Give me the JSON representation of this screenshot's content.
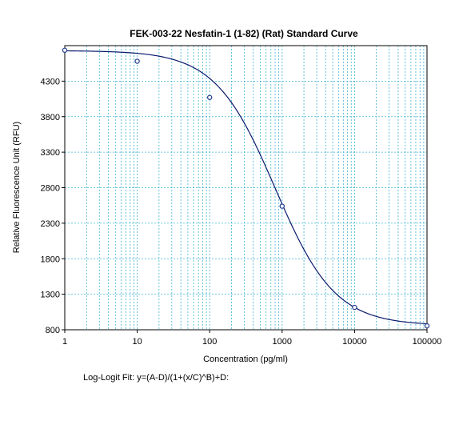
{
  "chart_data": {
    "type": "scatter",
    "title": "FEK-003-22 Nesfatin-1 (1-82) (Rat) Standard Curve",
    "xlabel": "Concentration (pg/ml)",
    "ylabel": "Relative Fluorescence Unit (RFU)",
    "x_scale": "log",
    "xlim": [
      1,
      100000
    ],
    "ylim": [
      800,
      4800
    ],
    "x_ticks": [
      1,
      10,
      100,
      1000,
      10000,
      100000
    ],
    "x_tick_labels": [
      "1",
      "10",
      "100",
      "1000",
      "10000",
      "100000"
    ],
    "y_ticks": [
      800,
      1300,
      1800,
      2300,
      2800,
      3300,
      3800,
      4300
    ],
    "y_tick_labels": [
      "800",
      "1300",
      "1800",
      "2300",
      "2800",
      "3300",
      "3800",
      "4300"
    ],
    "grid": true,
    "series": [
      {
        "kind": "points",
        "x": [
          1,
          10,
          100,
          1000,
          10000,
          100000
        ],
        "y": [
          4735,
          4580,
          4070,
          2540,
          1115,
          855
        ],
        "color": "#1f3a8a"
      },
      {
        "kind": "fit_curve",
        "model": "4PL",
        "params": {
          "A": 4730,
          "B": 1.05,
          "C": 800,
          "D": 860
        },
        "color": "#0a1a6e"
      }
    ],
    "annotation": "Log-Logit Fit: y=(A-D)/(1+(x/C)^B)+D:"
  },
  "colors": {
    "grid": "#3fb4d0",
    "axis": "#000000",
    "point": "#1f3a8a",
    "curve": "#0a1a6e"
  }
}
